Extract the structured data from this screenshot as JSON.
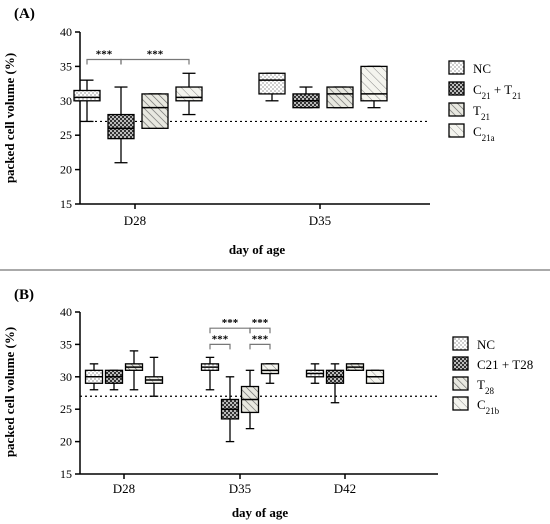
{
  "chart_data": [
    {
      "type": "boxplot",
      "panel_label": "(A)",
      "ylabel": "packed cell volume (%)",
      "xlabel": "day of age",
      "ylim": [
        15,
        40
      ],
      "yticks": [
        15,
        20,
        25,
        30,
        35,
        40
      ],
      "reference_line": 27,
      "categories": [
        "D28",
        "D35"
      ],
      "series": [
        {
          "name": "NC",
          "pattern": "dots",
          "values": [
            {
              "category": "D28",
              "min": 27,
              "q1": 30,
              "median": 30.5,
              "q3": 31.5,
              "max": 33
            },
            {
              "category": "D35",
              "min": 30,
              "q1": 31,
              "median": 33,
              "q3": 34,
              "max": 34
            }
          ]
        },
        {
          "name_parts": [
            "C",
            "21",
            " + T",
            "21"
          ],
          "pattern": "check",
          "values": [
            {
              "category": "D28",
              "min": 21,
              "q1": 24.5,
              "median": 26,
              "q3": 28,
              "max": 32
            },
            {
              "category": "D35",
              "min": 29,
              "q1": 29,
              "median": 30,
              "q3": 31,
              "max": 32
            }
          ]
        },
        {
          "name_parts": [
            "T",
            "21"
          ],
          "pattern": "hatch",
          "values": [
            {
              "category": "D28",
              "min": 26,
              "q1": 26,
              "median": 29,
              "q3": 31,
              "max": 31
            },
            {
              "category": "D35",
              "min": 29,
              "q1": 29,
              "median": 31,
              "q3": 32,
              "max": 32
            }
          ]
        },
        {
          "name_parts": [
            "C",
            "21a"
          ],
          "pattern": "hatch-light",
          "values": [
            {
              "category": "D28",
              "min": 28,
              "q1": 30,
              "median": 30.5,
              "q3": 32,
              "max": 34
            },
            {
              "category": "D35",
              "min": 29,
              "q1": 30,
              "median": 31,
              "q3": 35,
              "max": 35
            }
          ]
        }
      ],
      "significance": [
        {
          "label": "***",
          "from_series": 0,
          "to_series": 1,
          "category": "D28",
          "level": 36
        },
        {
          "label": "***",
          "from_series": 1,
          "to_series": 3,
          "category": "D28",
          "level": 36
        }
      ]
    },
    {
      "type": "boxplot",
      "panel_label": "(B)",
      "ylabel": "packed cell volume (%)",
      "xlabel": "day of age",
      "ylim": [
        15,
        40
      ],
      "yticks": [
        15,
        20,
        25,
        30,
        35,
        40
      ],
      "reference_line": 27,
      "categories": [
        "D28",
        "D35",
        "D42"
      ],
      "series": [
        {
          "name": "NC",
          "pattern": "dots",
          "values": [
            {
              "category": "D28",
              "min": 28,
              "q1": 29,
              "median": 30,
              "q3": 31,
              "max": 32
            },
            {
              "category": "D35",
              "min": 28,
              "q1": 31,
              "median": 31.5,
              "q3": 32,
              "max": 33
            },
            {
              "category": "D42",
              "min": 29,
              "q1": 30,
              "median": 30.5,
              "q3": 31,
              "max": 32
            }
          ]
        },
        {
          "name": "C21 + T28",
          "pattern": "check",
          "values": [
            {
              "category": "D28",
              "min": 28,
              "q1": 29,
              "median": 30,
              "q3": 31,
              "max": 31
            },
            {
              "category": "D35",
              "min": 20,
              "q1": 23.5,
              "median": 25,
              "q3": 26.5,
              "max": 30
            },
            {
              "category": "D42",
              "min": 26,
              "q1": 29,
              "median": 30,
              "q3": 31,
              "max": 32
            }
          ]
        },
        {
          "name_parts": [
            "T",
            "28"
          ],
          "pattern": "hatch",
          "values": [
            {
              "category": "D28",
              "min": 28,
              "q1": 31,
              "median": 31.5,
              "q3": 32,
              "max": 34
            },
            {
              "category": "D35",
              "min": 22,
              "q1": 24.5,
              "median": 26.5,
              "q3": 28.5,
              "max": 31
            },
            {
              "category": "D42",
              "min": 31,
              "q1": 31,
              "median": 31.5,
              "q3": 32,
              "max": 32
            }
          ]
        },
        {
          "name_parts": [
            "C",
            "21b"
          ],
          "pattern": "hatch-light",
          "values": [
            {
              "category": "D28",
              "min": 27,
              "q1": 29,
              "median": 29.5,
              "q3": 30,
              "max": 33
            },
            {
              "category": "D35",
              "min": 29,
              "q1": 30.5,
              "median": 31,
              "q3": 32,
              "max": 32
            },
            {
              "category": "D42",
              "min": 29,
              "q1": 29,
              "median": 30,
              "q3": 31,
              "max": 31
            }
          ]
        }
      ],
      "significance": [
        {
          "label": "***",
          "from_series": 0,
          "to_series": 2,
          "category": "D35",
          "level": 37.5
        },
        {
          "label": "***",
          "from_series": 2,
          "to_series": 3,
          "category": "D35",
          "level": 37.5
        },
        {
          "label": "***",
          "from_series": 0,
          "to_series": 1,
          "category": "D35",
          "level": 35
        },
        {
          "label": "***",
          "from_series": 2,
          "to_series": 3,
          "category": "D35",
          "level": 35
        }
      ]
    }
  ]
}
